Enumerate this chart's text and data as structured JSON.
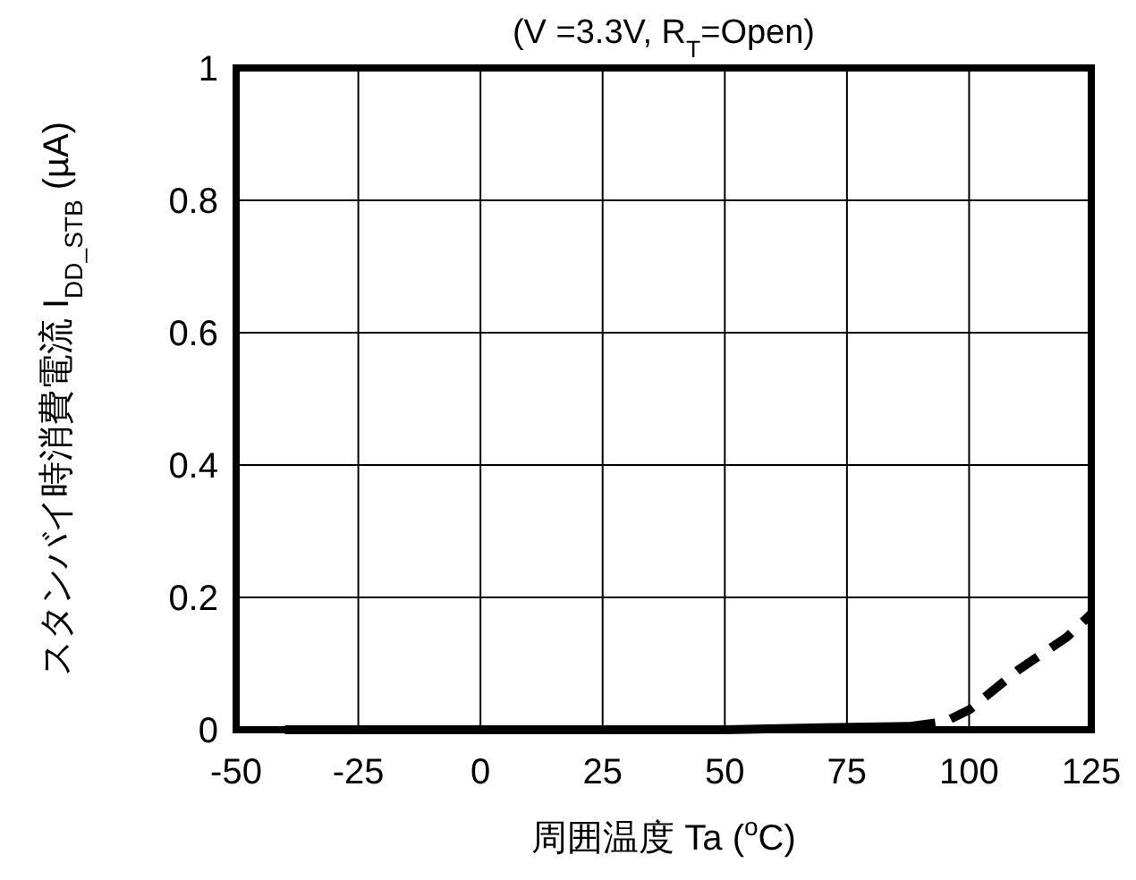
{
  "chart_data": {
    "type": "line",
    "title": "(V =3.3V, R$_{T}$=Open)",
    "xlabel": "周囲温度 Ta ($^{o}$C)",
    "ylabel": "スタンバイ時消費電流 I$_{DD_STB}$ (µA)",
    "xlim": [
      -50,
      125
    ],
    "xticks": [
      -50,
      -25,
      0,
      25,
      50,
      75,
      100,
      125
    ],
    "ylim": [
      0,
      1
    ],
    "yticks": [
      0,
      0.2,
      0.4,
      0.6,
      0.8,
      1
    ],
    "grid": true,
    "series": [
      {
        "color": "#000000",
        "line_style": "solid",
        "x": [
          -40,
          0,
          50,
          70,
          88
        ],
        "values": [
          0,
          0,
          0,
          0.003,
          0.005
        ]
      },
      {
        "color": "#000000",
        "line_style": "dashed",
        "x": [
          88,
          95,
          100,
          105,
          110,
          115,
          120,
          125
        ],
        "values": [
          0.005,
          0.012,
          0.03,
          0.06,
          0.09,
          0.115,
          0.14,
          0.175
        ]
      }
    ]
  }
}
